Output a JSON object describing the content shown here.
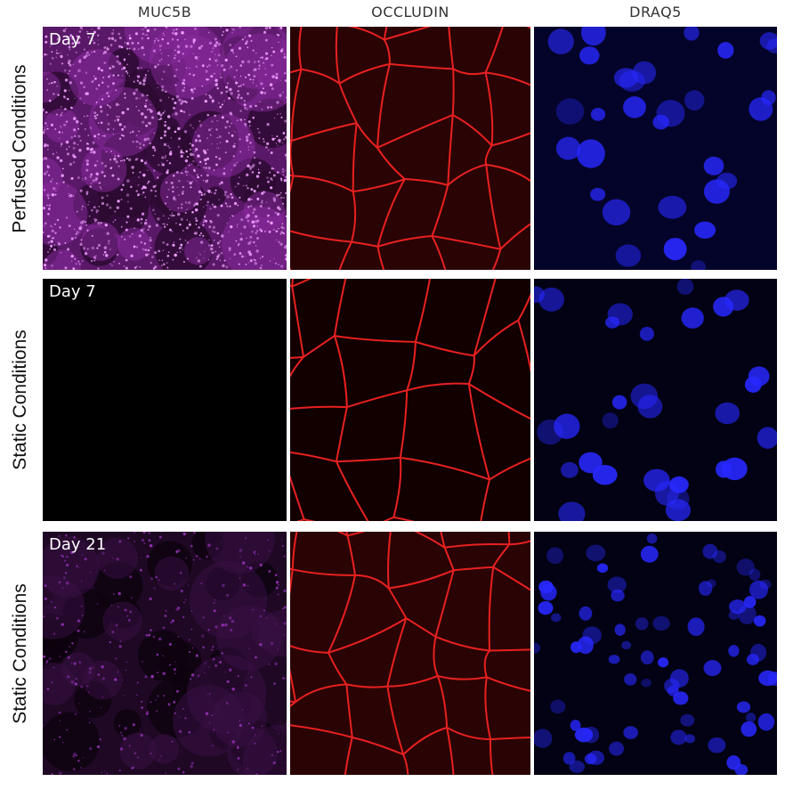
{
  "columns": [
    {
      "label": "MUC5B"
    },
    {
      "label": "OCCLUDIN"
    },
    {
      "label": "DRAQ5"
    }
  ],
  "rows": [
    {
      "label": "Perfused Conditions",
      "day": "Day 7",
      "muc_intensity": 1.0
    },
    {
      "label": "Static Conditions",
      "day": "Day 7",
      "muc_intensity": 0.0
    },
    {
      "label": "Static Conditions",
      "day": "Day 21",
      "muc_intensity": 0.4
    }
  ],
  "colors": {
    "muc5b": "#c040e0",
    "occludin": "#e01818",
    "draq5": "#2020ff"
  }
}
